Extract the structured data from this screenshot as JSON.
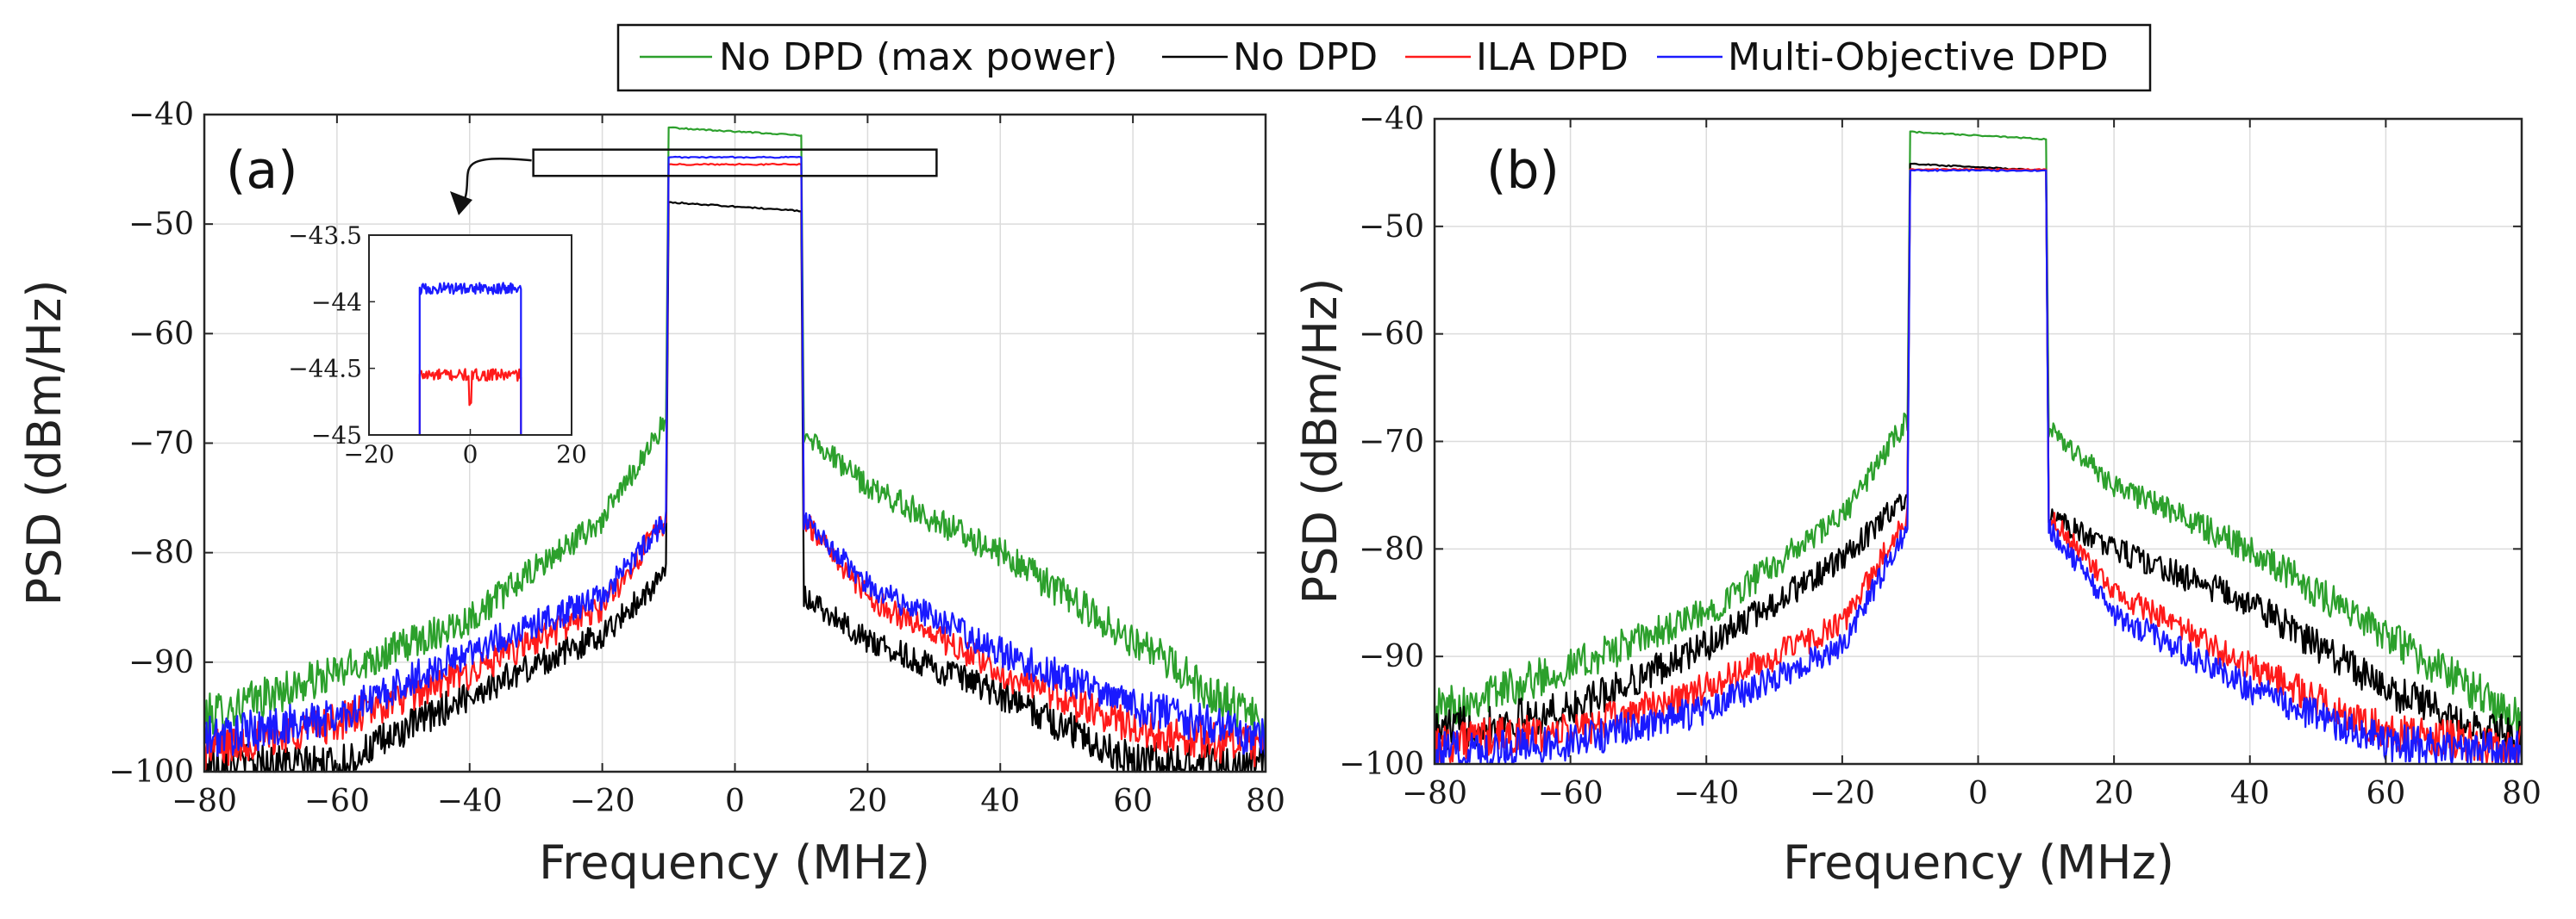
{
  "legend": {
    "entries": [
      {
        "label": "No DPD (max power)",
        "color": "#2ca02c"
      },
      {
        "label": "No DPD",
        "color": "#000000"
      },
      {
        "label": "ILA DPD",
        "color": "#ff1a1a"
      },
      {
        "label": "Multi-Objective DPD",
        "color": "#1a1aff"
      }
    ]
  },
  "chart_data": [
    {
      "type": "line",
      "panel_label": "(a)",
      "xlabel": "Frequency (MHz)",
      "ylabel": "PSD (dBm/Hz)",
      "xlim": [
        -80,
        80
      ],
      "ylim": [
        -100,
        -40
      ],
      "xticks": [
        -80,
        -60,
        -40,
        -20,
        0,
        20,
        40,
        60,
        80
      ],
      "yticks": [
        -100,
        -90,
        -80,
        -70,
        -60,
        -50,
        -40
      ],
      "xtick_labels": [
        "−80",
        "−60",
        "−40",
        "−20",
        "0",
        "20",
        "40",
        "60",
        "80"
      ],
      "ytick_labels": [
        "−100",
        "−90",
        "−80",
        "−70",
        "−60",
        "−50",
        "−40"
      ],
      "grid": true,
      "band_edges": [
        -10,
        10
      ],
      "series": [
        {
          "name": "No DPD (max power)",
          "color": "#2ca02c",
          "inband": [
            -41.2,
            -41.9
          ],
          "left": [
            [
              -80,
              -95
            ],
            [
              -60,
              -91
            ],
            [
              -40,
              -86
            ],
            [
              -20,
              -77
            ],
            [
              -10.5,
              -68
            ]
          ],
          "right": [
            [
              10.5,
              -69
            ],
            [
              20,
              -74
            ],
            [
              40,
              -80
            ],
            [
              60,
              -88
            ],
            [
              80,
              -96
            ]
          ]
        },
        {
          "name": "No DPD",
          "color": "#000000",
          "inband": [
            -48.0,
            -48.8
          ],
          "left": [
            [
              -80,
              -99
            ],
            [
              -60,
              -99.5
            ],
            [
              -40,
              -93
            ],
            [
              -20,
              -87.5
            ],
            [
              -10.5,
              -82
            ]
          ],
          "right": [
            [
              10.5,
              -84
            ],
            [
              20,
              -88
            ],
            [
              40,
              -93
            ],
            [
              60,
              -99
            ],
            [
              80,
              -99.5
            ]
          ]
        },
        {
          "name": "ILA DPD",
          "color": "#ff1a1a",
          "inband": [
            -44.55,
            -44.55
          ],
          "left": [
            [
              -80,
              -98
            ],
            [
              -60,
              -95.5
            ],
            [
              -40,
              -91
            ],
            [
              -20,
              -85
            ],
            [
              -10.5,
              -77
            ]
          ],
          "right": [
            [
              10.5,
              -77
            ],
            [
              20,
              -84
            ],
            [
              40,
              -91
            ],
            [
              60,
              -96
            ],
            [
              80,
              -98
            ]
          ]
        },
        {
          "name": "Multi-Objective DPD",
          "color": "#1a1aff",
          "inband": [
            -43.9,
            -43.9
          ],
          "left": [
            [
              -80,
              -97
            ],
            [
              -60,
              -95
            ],
            [
              -40,
              -89
            ],
            [
              -20,
              -84
            ],
            [
              -10.5,
              -77
            ]
          ],
          "right": [
            [
              10.5,
              -77
            ],
            [
              20,
              -83
            ],
            [
              40,
              -89
            ],
            [
              60,
              -94
            ],
            [
              80,
              -97
            ]
          ]
        }
      ],
      "inset": {
        "xlim": [
          -20,
          20
        ],
        "ylim": [
          -45,
          -43.5
        ],
        "xticks": [
          -20,
          0,
          20
        ],
        "yticks": [
          -45,
          -44.5,
          -44,
          -43.5
        ],
        "xtick_labels": [
          "−20",
          "0",
          "20"
        ],
        "ytick_labels": [
          "−45",
          "−44.5",
          "−44",
          "−43.5"
        ],
        "series": [
          {
            "name": "ILA DPD",
            "color": "#ff1a1a",
            "level": -44.55,
            "band": [
              -10,
              10
            ]
          },
          {
            "name": "Multi-Objective DPD",
            "color": "#1a1aff",
            "level": -43.9,
            "band": [
              -10,
              10
            ]
          }
        ],
        "zoom_box": {
          "x": [
            -20,
            20
          ],
          "y": [
            -45.6,
            -43.2
          ]
        }
      }
    },
    {
      "type": "line",
      "panel_label": "(b)",
      "xlabel": "Frequency (MHz)",
      "ylabel": "PSD (dBm/Hz)",
      "xlim": [
        -80,
        80
      ],
      "ylim": [
        -100,
        -40
      ],
      "xticks": [
        -80,
        -60,
        -40,
        -20,
        0,
        20,
        40,
        60,
        80
      ],
      "yticks": [
        -100,
        -90,
        -80,
        -70,
        -60,
        -50,
        -40
      ],
      "xtick_labels": [
        "−80",
        "−60",
        "−40",
        "−20",
        "0",
        "20",
        "40",
        "60",
        "80"
      ],
      "ytick_labels": [
        "−100",
        "−90",
        "−80",
        "−70",
        "−60",
        "−50",
        "−40"
      ],
      "grid": true,
      "band_edges": [
        -10,
        10
      ],
      "series": [
        {
          "name": "No DPD (max power)",
          "color": "#2ca02c",
          "inband": [
            -41.2,
            -41.9
          ],
          "left": [
            [
              -80,
              -95
            ],
            [
              -60,
              -91
            ],
            [
              -40,
              -86
            ],
            [
              -20,
              -77
            ],
            [
              -10.5,
              -68
            ]
          ],
          "right": [
            [
              10.5,
              -69
            ],
            [
              20,
              -74
            ],
            [
              40,
              -80
            ],
            [
              60,
              -88
            ],
            [
              80,
              -96
            ]
          ]
        },
        {
          "name": "No DPD",
          "color": "#000000",
          "inband": [
            -44.2,
            -44.8
          ],
          "left": [
            [
              -80,
              -97
            ],
            [
              -60,
              -95
            ],
            [
              -40,
              -89
            ],
            [
              -20,
              -81
            ],
            [
              -10.5,
              -75
            ]
          ],
          "right": [
            [
              10.5,
              -77
            ],
            [
              20,
              -80
            ],
            [
              40,
              -85
            ],
            [
              60,
              -93
            ],
            [
              80,
              -98
            ]
          ]
        },
        {
          "name": "ILA DPD",
          "color": "#ff1a1a",
          "inband": [
            -44.7,
            -44.7
          ],
          "left": [
            [
              -80,
              -98
            ],
            [
              -60,
              -97
            ],
            [
              -40,
              -93
            ],
            [
              -20,
              -87
            ],
            [
              -10.5,
              -77
            ]
          ],
          "right": [
            [
              10.5,
              -77
            ],
            [
              20,
              -84
            ],
            [
              40,
              -91
            ],
            [
              60,
              -97
            ],
            [
              80,
              -98.5
            ]
          ]
        },
        {
          "name": "Multi-Objective DPD",
          "color": "#1a1aff",
          "inband": [
            -44.8,
            -44.8
          ],
          "left": [
            [
              -80,
              -99
            ],
            [
              -60,
              -98
            ],
            [
              -40,
              -95
            ],
            [
              -20,
              -89
            ],
            [
              -10.5,
              -78
            ]
          ],
          "right": [
            [
              10.5,
              -78
            ],
            [
              20,
              -86
            ],
            [
              40,
              -93
            ],
            [
              60,
              -98
            ],
            [
              80,
              -99
            ]
          ]
        }
      ]
    }
  ]
}
